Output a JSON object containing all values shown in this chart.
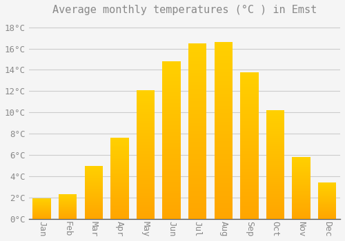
{
  "title": "Average monthly temperatures (°C ) in Emst",
  "months": [
    "Jan",
    "Feb",
    "Mar",
    "Apr",
    "May",
    "Jun",
    "Jul",
    "Aug",
    "Sep",
    "Oct",
    "Nov",
    "Dec"
  ],
  "temperatures": [
    1.9,
    2.3,
    5.0,
    7.6,
    12.1,
    14.8,
    16.5,
    16.6,
    13.8,
    10.2,
    5.8,
    3.4
  ],
  "bar_color": "#FFA500",
  "bar_color_light": "#FFD000",
  "background_color": "#F5F5F5",
  "grid_color": "#CCCCCC",
  "ytick_labels": [
    "0°C",
    "2°C",
    "4°C",
    "6°C",
    "8°C",
    "10°C",
    "12°C",
    "14°C",
    "16°C",
    "18°C"
  ],
  "ytick_values": [
    0,
    2,
    4,
    6,
    8,
    10,
    12,
    14,
    16,
    18
  ],
  "ylim": [
    0,
    18.8
  ],
  "title_fontsize": 11,
  "tick_fontsize": 9,
  "font_color": "#888888",
  "bar_width": 0.7
}
